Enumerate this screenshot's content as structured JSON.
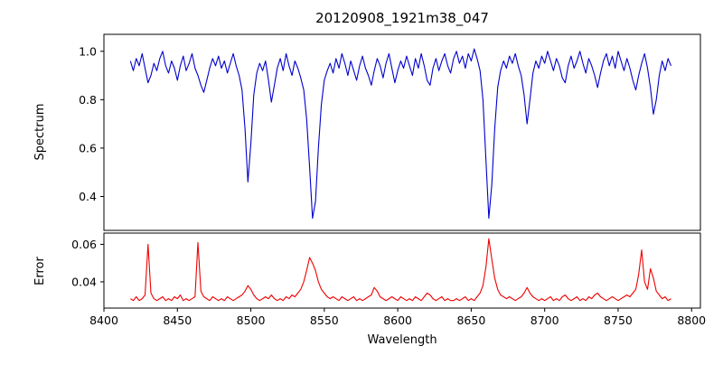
{
  "chart_data": {
    "type": "line",
    "title": "20120908_1921m38_047",
    "xlabel": "Wavelength",
    "xlim": [
      8400,
      8806
    ],
    "xticks": [
      {
        "v": 8400,
        "label": "8400"
      },
      {
        "v": 8450,
        "label": "8450"
      },
      {
        "v": 8500,
        "label": "8500"
      },
      {
        "v": 8550,
        "label": "8550"
      },
      {
        "v": 8600,
        "label": "8600"
      },
      {
        "v": 8650,
        "label": "8650"
      },
      {
        "v": 8700,
        "label": "8700"
      },
      {
        "v": 8750,
        "label": "8750"
      },
      {
        "v": 8800,
        "label": "8800"
      }
    ],
    "x": [
      8418,
      8420,
      8422,
      8424,
      8426,
      8428,
      8430,
      8432,
      8434,
      8436,
      8438,
      8440,
      8442,
      8444,
      8446,
      8448,
      8450,
      8452,
      8454,
      8456,
      8458,
      8460,
      8462,
      8464,
      8466,
      8468,
      8470,
      8472,
      8474,
      8476,
      8478,
      8480,
      8482,
      8484,
      8486,
      8488,
      8490,
      8492,
      8494,
      8496,
      8498,
      8500,
      8502,
      8504,
      8506,
      8508,
      8510,
      8512,
      8514,
      8516,
      8518,
      8520,
      8522,
      8524,
      8526,
      8528,
      8530,
      8532,
      8534,
      8536,
      8538,
      8540,
      8542,
      8544,
      8546,
      8548,
      8550,
      8552,
      8554,
      8556,
      8558,
      8560,
      8562,
      8564,
      8566,
      8568,
      8570,
      8572,
      8574,
      8576,
      8578,
      8580,
      8582,
      8584,
      8586,
      8588,
      8590,
      8592,
      8594,
      8596,
      8598,
      8600,
      8602,
      8604,
      8606,
      8608,
      8610,
      8612,
      8614,
      8616,
      8618,
      8620,
      8622,
      8624,
      8626,
      8628,
      8630,
      8632,
      8634,
      8636,
      8638,
      8640,
      8642,
      8644,
      8646,
      8648,
      8650,
      8652,
      8654,
      8656,
      8658,
      8660,
      8662,
      8664,
      8666,
      8668,
      8670,
      8672,
      8674,
      8676,
      8678,
      8680,
      8682,
      8684,
      8686,
      8688,
      8690,
      8692,
      8694,
      8696,
      8698,
      8700,
      8702,
      8704,
      8706,
      8708,
      8710,
      8712,
      8714,
      8716,
      8718,
      8720,
      8722,
      8724,
      8726,
      8728,
      8730,
      8732,
      8734,
      8736,
      8738,
      8740,
      8742,
      8744,
      8746,
      8748,
      8750,
      8752,
      8754,
      8756,
      8758,
      8760,
      8762,
      8764,
      8766,
      8768,
      8770,
      8772,
      8774,
      8776,
      8778,
      8780,
      8782,
      8784,
      8786
    ],
    "subplots": [
      {
        "name": "spectrum",
        "ylabel": "Spectrum",
        "color": "#0000cd",
        "ylim": [
          0.26,
          1.07
        ],
        "yticks": [
          {
            "v": 0.4,
            "label": "0.4"
          },
          {
            "v": 0.6,
            "label": "0.6"
          },
          {
            "v": 0.8,
            "label": "0.8"
          },
          {
            "v": 1.0,
            "label": "1.0"
          }
        ],
        "y": [
          0.96,
          0.92,
          0.97,
          0.94,
          0.99,
          0.93,
          0.87,
          0.9,
          0.95,
          0.92,
          0.97,
          1.0,
          0.94,
          0.91,
          0.96,
          0.93,
          0.88,
          0.94,
          0.98,
          0.92,
          0.95,
          0.99,
          0.93,
          0.9,
          0.86,
          0.83,
          0.88,
          0.93,
          0.97,
          0.94,
          0.98,
          0.93,
          0.96,
          0.91,
          0.95,
          0.99,
          0.94,
          0.9,
          0.84,
          0.68,
          0.46,
          0.62,
          0.82,
          0.91,
          0.95,
          0.92,
          0.96,
          0.88,
          0.79,
          0.86,
          0.93,
          0.97,
          0.92,
          0.99,
          0.94,
          0.9,
          0.96,
          0.93,
          0.89,
          0.84,
          0.72,
          0.52,
          0.31,
          0.38,
          0.6,
          0.78,
          0.88,
          0.92,
          0.95,
          0.91,
          0.97,
          0.93,
          0.99,
          0.95,
          0.9,
          0.96,
          0.92,
          0.88,
          0.94,
          0.98,
          0.93,
          0.9,
          0.86,
          0.92,
          0.97,
          0.94,
          0.89,
          0.95,
          0.99,
          0.93,
          0.87,
          0.92,
          0.96,
          0.93,
          0.98,
          0.94,
          0.9,
          0.97,
          0.93,
          0.99,
          0.94,
          0.88,
          0.86,
          0.93,
          0.97,
          0.92,
          0.96,
          0.99,
          0.94,
          0.91,
          0.97,
          1.0,
          0.95,
          0.98,
          0.93,
          0.99,
          0.96,
          1.01,
          0.97,
          0.92,
          0.8,
          0.55,
          0.31,
          0.45,
          0.68,
          0.85,
          0.92,
          0.96,
          0.93,
          0.98,
          0.95,
          0.99,
          0.94,
          0.9,
          0.82,
          0.7,
          0.8,
          0.91,
          0.96,
          0.93,
          0.98,
          0.95,
          1.0,
          0.96,
          0.92,
          0.97,
          0.94,
          0.89,
          0.87,
          0.94,
          0.98,
          0.93,
          0.96,
          1.0,
          0.95,
          0.91,
          0.97,
          0.94,
          0.9,
          0.85,
          0.91,
          0.96,
          0.99,
          0.94,
          0.98,
          0.93,
          1.0,
          0.96,
          0.92,
          0.97,
          0.93,
          0.88,
          0.84,
          0.9,
          0.95,
          0.99,
          0.93,
          0.85,
          0.74,
          0.8,
          0.9,
          0.96,
          0.92,
          0.97,
          0.94
        ]
      },
      {
        "name": "error",
        "ylabel": "Error",
        "color": "#ee0000",
        "ylim": [
          0.026,
          0.066
        ],
        "yticks": [
          {
            "v": 0.04,
            "label": "0.04"
          },
          {
            "v": 0.06,
            "label": "0.06"
          }
        ],
        "y": [
          0.031,
          0.03,
          0.032,
          0.03,
          0.031,
          0.033,
          0.06,
          0.034,
          0.031,
          0.03,
          0.031,
          0.032,
          0.03,
          0.031,
          0.03,
          0.032,
          0.031,
          0.033,
          0.03,
          0.031,
          0.03,
          0.031,
          0.032,
          0.061,
          0.035,
          0.032,
          0.031,
          0.03,
          0.032,
          0.031,
          0.03,
          0.031,
          0.03,
          0.032,
          0.031,
          0.03,
          0.031,
          0.032,
          0.033,
          0.035,
          0.038,
          0.036,
          0.033,
          0.031,
          0.03,
          0.031,
          0.032,
          0.031,
          0.033,
          0.031,
          0.03,
          0.031,
          0.03,
          0.032,
          0.031,
          0.033,
          0.032,
          0.034,
          0.036,
          0.04,
          0.046,
          0.053,
          0.05,
          0.046,
          0.04,
          0.036,
          0.034,
          0.032,
          0.031,
          0.032,
          0.031,
          0.03,
          0.032,
          0.031,
          0.03,
          0.031,
          0.032,
          0.03,
          0.031,
          0.03,
          0.031,
          0.032,
          0.033,
          0.037,
          0.035,
          0.032,
          0.031,
          0.03,
          0.031,
          0.032,
          0.031,
          0.03,
          0.032,
          0.031,
          0.03,
          0.031,
          0.03,
          0.032,
          0.031,
          0.03,
          0.032,
          0.034,
          0.033,
          0.031,
          0.03,
          0.031,
          0.032,
          0.03,
          0.031,
          0.03,
          0.03,
          0.031,
          0.03,
          0.031,
          0.032,
          0.03,
          0.031,
          0.03,
          0.032,
          0.034,
          0.038,
          0.048,
          0.063,
          0.052,
          0.042,
          0.036,
          0.033,
          0.032,
          0.031,
          0.032,
          0.031,
          0.03,
          0.031,
          0.032,
          0.034,
          0.037,
          0.034,
          0.032,
          0.031,
          0.03,
          0.031,
          0.03,
          0.031,
          0.032,
          0.03,
          0.031,
          0.03,
          0.032,
          0.033,
          0.031,
          0.03,
          0.031,
          0.032,
          0.03,
          0.031,
          0.03,
          0.032,
          0.031,
          0.033,
          0.034,
          0.032,
          0.031,
          0.03,
          0.031,
          0.032,
          0.031,
          0.03,
          0.031,
          0.032,
          0.033,
          0.032,
          0.034,
          0.036,
          0.044,
          0.057,
          0.04,
          0.036,
          0.047,
          0.042,
          0.035,
          0.033,
          0.031,
          0.032,
          0.03,
          0.031
        ]
      }
    ]
  }
}
